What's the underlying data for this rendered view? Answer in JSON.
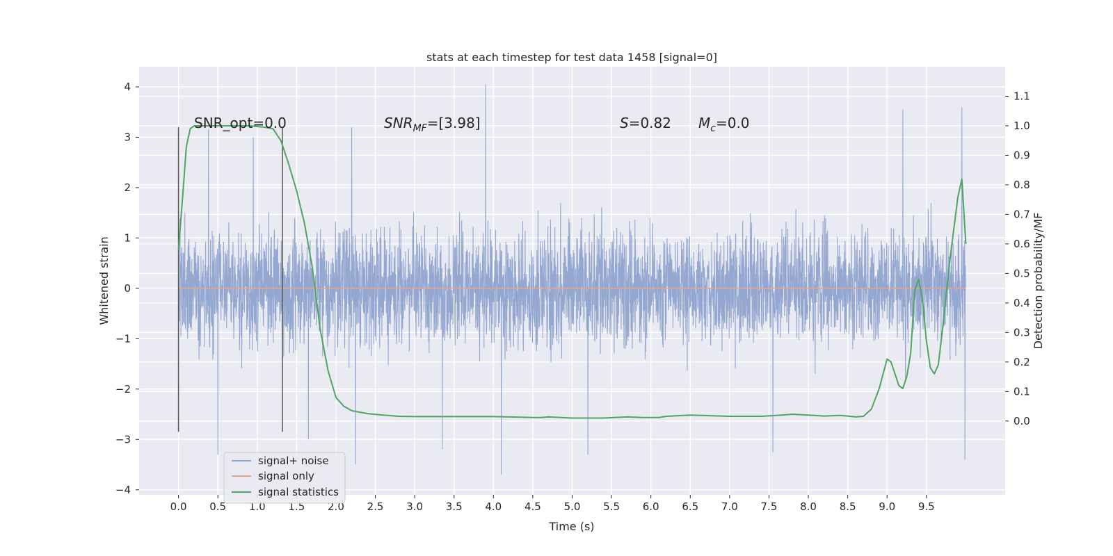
{
  "chart_data": {
    "type": "line",
    "title": "stats at each timestep for test data 1458 [signal=0]",
    "xlabel": "Time (s)",
    "ylabel": "Whitened strain",
    "y2label": "Detection probability/MF",
    "xlim": [
      -0.5,
      10.5
    ],
    "ylim": [
      -4.1,
      4.4
    ],
    "y2lim": [
      -0.25,
      1.2
    ],
    "xticks": [
      "0.0",
      "0.5",
      "1.0",
      "1.5",
      "2.0",
      "2.5",
      "3.0",
      "3.5",
      "4.0",
      "4.5",
      "5.0",
      "5.5",
      "6.0",
      "6.5",
      "7.0",
      "7.5",
      "8.0",
      "8.5",
      "9.0",
      "9.5"
    ],
    "yticks": [
      "4",
      "3",
      "2",
      "1",
      "0",
      "−1",
      "−2",
      "−3",
      "−4"
    ],
    "y2ticks": [
      "0.0",
      "0.1",
      "0.2",
      "0.3",
      "0.4",
      "0.5",
      "0.6",
      "0.7",
      "0.8",
      "0.9",
      "1.0",
      "1.1"
    ],
    "grid": true,
    "legend_position": "lower-left",
    "series": [
      {
        "name": "signal+ noise",
        "color": "#8fa3cf",
        "axis": "left",
        "x_range": [
          0.0,
          10.0
        ],
        "envelope_abs_typical": 1.35,
        "peaks": [
          [
            0.38,
            3.15
          ],
          [
            0.5,
            -3.3
          ],
          [
            0.95,
            3.0
          ],
          [
            1.65,
            -3.0
          ],
          [
            2.2,
            3.2
          ],
          [
            2.25,
            -3.5
          ],
          [
            3.35,
            -3.2
          ],
          [
            3.9,
            4.05
          ],
          [
            4.1,
            -3.7
          ],
          [
            5.2,
            -3.3
          ],
          [
            7.55,
            -3.25
          ],
          [
            9.2,
            3.55
          ],
          [
            9.95,
            3.6
          ],
          [
            9.99,
            -3.4
          ]
        ]
      },
      {
        "name": "signal only",
        "color": "#e6a58a",
        "axis": "left",
        "x": [
          0.0,
          10.0
        ],
        "y": [
          0.0,
          0.0
        ]
      },
      {
        "name": "signal statistics",
        "color": "#4fa463",
        "axis": "right",
        "x": [
          0.0,
          0.05,
          0.1,
          0.15,
          0.2,
          0.3,
          0.5,
          0.7,
          0.9,
          1.1,
          1.2,
          1.3,
          1.4,
          1.5,
          1.6,
          1.7,
          1.8,
          1.9,
          2.0,
          2.1,
          2.2,
          2.4,
          2.6,
          2.8,
          3.0,
          3.5,
          4.0,
          4.5,
          4.6,
          4.7,
          5.0,
          5.2,
          5.4,
          5.7,
          5.9,
          6.1,
          6.2,
          6.5,
          7.0,
          7.4,
          7.6,
          7.8,
          8.0,
          8.2,
          8.4,
          8.5,
          8.6,
          8.7,
          8.8,
          8.9,
          9.0,
          9.05,
          9.1,
          9.15,
          9.2,
          9.25,
          9.3,
          9.35,
          9.4,
          9.45,
          9.5,
          9.55,
          9.6,
          9.65,
          9.7,
          9.8,
          9.9,
          9.95,
          10.0
        ],
        "y": [
          0.58,
          0.75,
          0.93,
          0.99,
          1.0,
          1.0,
          1.0,
          1.0,
          1.0,
          0.995,
          0.99,
          0.95,
          0.87,
          0.78,
          0.67,
          0.52,
          0.31,
          0.17,
          0.08,
          0.05,
          0.035,
          0.025,
          0.02,
          0.016,
          0.015,
          0.015,
          0.015,
          0.012,
          0.012,
          0.014,
          0.01,
          0.01,
          0.01,
          0.014,
          0.012,
          0.012,
          0.016,
          0.02,
          0.016,
          0.016,
          0.019,
          0.023,
          0.02,
          0.017,
          0.019,
          0.017,
          0.014,
          0.016,
          0.04,
          0.11,
          0.21,
          0.2,
          0.16,
          0.12,
          0.11,
          0.15,
          0.23,
          0.44,
          0.48,
          0.41,
          0.27,
          0.18,
          0.16,
          0.19,
          0.3,
          0.55,
          0.76,
          0.82,
          0.6
        ]
      }
    ],
    "vlines": [
      {
        "x": 0.0,
        "y": [
          -2.85,
          3.2
        ]
      },
      {
        "x": 1.32,
        "y": [
          -2.85,
          3.2
        ]
      }
    ],
    "annotations": [
      {
        "id": "snr-opt",
        "text": "SNR_opt=0.0",
        "x": 0.2,
        "y": 3.2
      },
      {
        "id": "snr-mf",
        "prefix": "SNR",
        "sub": "MF",
        "suffix": "=[3.98]",
        "x": 2.6,
        "y": 3.2
      },
      {
        "id": "s-stat",
        "var": "S",
        "suffix": "=0.82",
        "x": 5.6,
        "y": 3.2
      },
      {
        "id": "mc-stat",
        "var": "M",
        "sub": "c",
        "suffix": "=0.0",
        "x": 6.6,
        "y": 3.2
      }
    ]
  }
}
